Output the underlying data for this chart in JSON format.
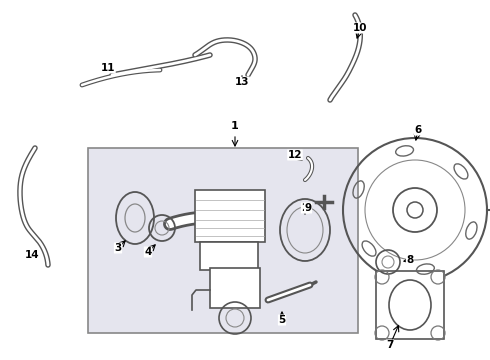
{
  "bg_color": "#ffffff",
  "line_color": "#444444",
  "box_fill": "#e8e8f0",
  "fig_width": 4.9,
  "fig_height": 3.6,
  "dpi": 100
}
